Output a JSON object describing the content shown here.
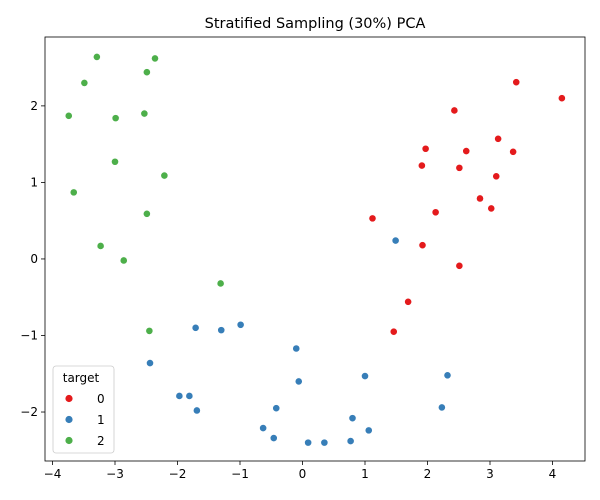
{
  "chart_data": {
    "type": "scatter",
    "title": "Stratified Sampling (30%) PCA",
    "xlabel": "",
    "ylabel": "",
    "xlim": [
      -4.12,
      4.52
    ],
    "ylim": [
      -2.64,
      2.9
    ],
    "xticks": [
      -4,
      -3,
      -2,
      -1,
      0,
      1,
      2,
      3,
      4
    ],
    "yticks": [
      -2,
      -1,
      0,
      1,
      2
    ],
    "grid": false,
    "legend": {
      "title": "target",
      "placement": "lower-left"
    },
    "colors": {
      "0": "#e41a1c",
      "1": "#377eb8",
      "2": "#4daf4a"
    },
    "series": [
      {
        "name": "0",
        "x": [
          3.42,
          4.15,
          2.43,
          3.13,
          1.97,
          2.62,
          3.37,
          1.91,
          2.51,
          3.1,
          2.84,
          3.02,
          2.13,
          1.12,
          1.92,
          2.51,
          1.69,
          1.46
        ],
        "y": [
          2.31,
          2.1,
          1.94,
          1.57,
          1.44,
          1.41,
          1.4,
          1.22,
          1.19,
          1.08,
          0.79,
          0.66,
          0.61,
          0.53,
          0.18,
          -0.09,
          -0.56,
          -0.95
        ]
      },
      {
        "name": "1",
        "x": [
          1.49,
          -0.99,
          -1.71,
          -1.3,
          -2.44,
          -0.1,
          1.0,
          2.32,
          -0.06,
          -1.97,
          -1.81,
          -1.69,
          -0.42,
          2.23,
          0.8,
          -0.63,
          1.06,
          -0.46,
          0.09,
          0.35,
          0.77
        ],
        "y": [
          0.24,
          -0.86,
          -0.9,
          -0.93,
          -1.36,
          -1.17,
          -1.53,
          -1.52,
          -1.6,
          -1.79,
          -1.79,
          -1.98,
          -1.95,
          -1.94,
          -2.08,
          -2.21,
          -2.24,
          -2.34,
          -2.4,
          -2.4,
          -2.38
        ]
      },
      {
        "name": "2",
        "x": [
          -3.29,
          -2.36,
          -2.49,
          -3.49,
          -3.74,
          -2.53,
          -2.99,
          -3.0,
          -2.21,
          -3.66,
          -2.49,
          -3.23,
          -2.86,
          -1.31,
          -2.45
        ],
        "y": [
          2.64,
          2.62,
          2.44,
          2.3,
          1.87,
          1.9,
          1.84,
          1.27,
          1.09,
          0.87,
          0.59,
          0.17,
          -0.02,
          -0.32,
          -0.94
        ]
      }
    ]
  }
}
